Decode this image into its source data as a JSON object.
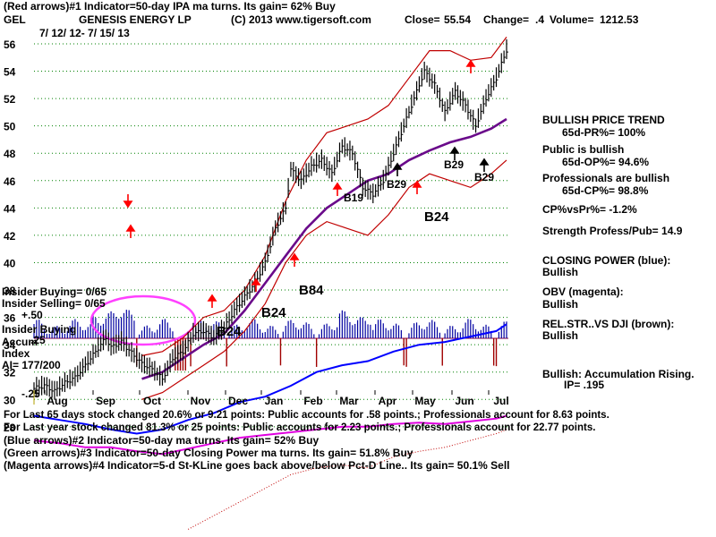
{
  "header": {
    "line1": "(Red arrows)#1 Indicator=50-day IPA ma turns. Its gain= 62% Buy",
    "ticker": "GEL",
    "company": "GENESIS ENERGY LP",
    "copyright": "(C) 2013 www.tigersoft.com",
    "close_label": "Close=",
    "close_value": "55.54",
    "change_label": "Change=",
    "change_value": ".4",
    "volume_label": "Volume=",
    "volume_value": "1212.53",
    "date_range": "7/ 12/ 12- 7/ 15/ 13"
  },
  "colors": {
    "price": "#000000",
    "grid": "#008000",
    "bands": "#c00000",
    "ma": "#6a0a8a",
    "closing_power": "#0000ff",
    "obv": "#e000e0",
    "accum": "#0000a0",
    "accum_neg": "#a00000",
    "arrow_red": "#ff0000",
    "ellipse": "#ff40ff"
  },
  "annotations": {
    "b19": "B19",
    "b29a": "B29",
    "b29b": "B29",
    "b29c": "B29",
    "b24a": "B24",
    "b24b": "B24",
    "b24c": "B24",
    "b84": "B84"
  },
  "insider": {
    "buying": "Insider Buying= 0/65",
    "selling": "Insider Selling= 0/65",
    "plus50": "+.50",
    "insider_buying_lbl": "Insider Buying",
    "accum": "Accum",
    "plus25": ".25",
    "index": "Index",
    "ai": "AI= 177/200",
    "minus25": "-.25"
  },
  "right_panel": {
    "trend_title": "BULLISH PRICE TREND",
    "pr": "65d-PR%= 100%",
    "public": "Public is bullish",
    "op": "65d-OP%= 94.6%",
    "pros": "Professionals are bullish",
    "cp": "65d-CP%= 98.8%",
    "cpvspr": "CP%vsPr%= -1.2%",
    "strength": "Strength Profess/Pub= 14.9",
    "closing_power": "CLOSING POWER (blue):",
    "cp_status": "Bullish",
    "obv": "OBV (magenta):",
    "obv_status": "Bullish",
    "relstr": "REL.STR..VS DJI (brown):",
    "relstr_status": "Bullish",
    "accum_rising": "Bullish: Accumulation Rising.",
    "ip": "IP= .195"
  },
  "footer": {
    "line1": "For Last 65 days stock changed 20.6% or 9.21 points: Public accounts for .58 points.; Professionals account for 8.63 points.",
    "line2": "For Last year stock changed 81.3% or 25 points: Public accounts for 2.23 points.; Professionals account for 22.77 points.",
    "line3": "(Blue arrows)#2 Indicator=50-day ma turns. Its gain= 52% Buy",
    "line4": "(Green arrows)#3 Indicator=50-day Closing Power ma turns. Its gain= 51.8% Buy",
    "line5": "(Magenta arrows)#4 Indicator=5-d St-KLine goes back above/below Pct-D Line.. Its gain= 50.1% Sell"
  },
  "chart_data": {
    "type": "line",
    "title": "GENESIS ENERGY LP (GEL) 7/12/12 - 7/15/13",
    "y_ticks": [
      56,
      54,
      52,
      50,
      48,
      46,
      44,
      42,
      40,
      38,
      36,
      34,
      32,
      30,
      28
    ],
    "ylim": [
      27,
      57
    ],
    "months": [
      "Aug",
      "Sep",
      "Oct",
      "Nov",
      "Dec",
      "Jan",
      "Feb",
      "Mar",
      "Apr",
      "May",
      "Jun",
      "Jul"
    ],
    "price_series": [
      [
        0,
        30.8
      ],
      [
        4,
        31.0
      ],
      [
        8,
        30.6
      ],
      [
        12,
        31.2
      ],
      [
        16,
        31.6
      ],
      [
        20,
        32.5
      ],
      [
        24,
        33.5
      ],
      [
        28,
        34.5
      ],
      [
        30,
        33.8
      ],
      [
        34,
        34.2
      ],
      [
        38,
        33.4
      ],
      [
        42,
        32.6
      ],
      [
        46,
        32.2
      ],
      [
        50,
        31.5
      ],
      [
        54,
        33.0
      ],
      [
        58,
        33.5
      ],
      [
        62,
        34.8
      ],
      [
        66,
        35.0
      ],
      [
        70,
        34.5
      ],
      [
        74,
        35.2
      ],
      [
        78,
        36.5
      ],
      [
        82,
        37.5
      ],
      [
        86,
        38.5
      ],
      [
        90,
        40.0
      ],
      [
        94,
        42.5
      ],
      [
        98,
        44.0
      ],
      [
        100,
        46.8
      ],
      [
        104,
        46.0
      ],
      [
        108,
        47.0
      ],
      [
        112,
        47.5
      ],
      [
        116,
        46.5
      ],
      [
        120,
        48.5
      ],
      [
        124,
        48.0
      ],
      [
        128,
        45.5
      ],
      [
        132,
        45.0
      ],
      [
        136,
        46.0
      ],
      [
        140,
        48.0
      ],
      [
        144,
        50.0
      ],
      [
        148,
        52.0
      ],
      [
        152,
        54.0
      ],
      [
        156,
        53.0
      ],
      [
        160,
        51.0
      ],
      [
        164,
        52.5
      ],
      [
        168,
        51.5
      ],
      [
        172,
        50.0
      ],
      [
        176,
        52.0
      ],
      [
        180,
        53.5
      ],
      [
        184,
        55.54
      ]
    ],
    "ma50": [
      [
        42,
        31.5
      ],
      [
        50,
        32.0
      ],
      [
        58,
        33.0
      ],
      [
        66,
        34.0
      ],
      [
        74,
        34.8
      ],
      [
        82,
        36.5
      ],
      [
        90,
        38.5
      ],
      [
        98,
        40.5
      ],
      [
        106,
        42.5
      ],
      [
        114,
        44.0
      ],
      [
        122,
        45.0
      ],
      [
        130,
        46.0
      ],
      [
        138,
        46.5
      ],
      [
        146,
        47.5
      ],
      [
        154,
        48.2
      ],
      [
        162,
        48.8
      ],
      [
        170,
        49.2
      ],
      [
        178,
        49.8
      ],
      [
        184,
        50.5
      ]
    ],
    "upper_band": [
      [
        42,
        33.2
      ],
      [
        50,
        33.5
      ],
      [
        58,
        34.5
      ],
      [
        66,
        36.0
      ],
      [
        74,
        36.5
      ],
      [
        82,
        38.0
      ],
      [
        90,
        40.5
      ],
      [
        98,
        44.5
      ],
      [
        106,
        47.5
      ],
      [
        114,
        49.5
      ],
      [
        122,
        50.0
      ],
      [
        130,
        50.5
      ],
      [
        138,
        51.5
      ],
      [
        146,
        53.5
      ],
      [
        154,
        55.5
      ],
      [
        162,
        55.5
      ],
      [
        170,
        54.8
      ],
      [
        178,
        55.0
      ],
      [
        184,
        56.5
      ]
    ],
    "lower_band": [
      [
        42,
        30.0
      ],
      [
        50,
        30.5
      ],
      [
        58,
        31.5
      ],
      [
        66,
        32.5
      ],
      [
        74,
        33.5
      ],
      [
        82,
        35.0
      ],
      [
        90,
        37.0
      ],
      [
        98,
        40.0
      ],
      [
        106,
        42.0
      ],
      [
        114,
        43.0
      ],
      [
        122,
        42.5
      ],
      [
        130,
        42.0
      ],
      [
        138,
        43.5
      ],
      [
        146,
        45.5
      ],
      [
        154,
        46.5
      ],
      [
        162,
        46.0
      ],
      [
        170,
        45.5
      ],
      [
        178,
        46.5
      ],
      [
        184,
        47.5
      ]
    ],
    "closing_power": [
      [
        0,
        28.8
      ],
      [
        10,
        28.5
      ],
      [
        20,
        28.2
      ],
      [
        30,
        27.8
      ],
      [
        40,
        27.5
      ],
      [
        50,
        27.8
      ],
      [
        60,
        28.5
      ],
      [
        70,
        29.0
      ],
      [
        80,
        29.8
      ],
      [
        90,
        30.2
      ],
      [
        100,
        31.0
      ],
      [
        110,
        32.0
      ],
      [
        120,
        32.5
      ],
      [
        130,
        32.8
      ],
      [
        140,
        33.5
      ],
      [
        150,
        34.0
      ],
      [
        160,
        34.2
      ],
      [
        170,
        34.6
      ],
      [
        180,
        35.0
      ],
      [
        184,
        35.5
      ]
    ],
    "obv": [
      [
        0,
        27.0
      ],
      [
        10,
        26.8
      ],
      [
        20,
        26.5
      ],
      [
        30,
        26.5
      ],
      [
        40,
        26.2
      ],
      [
        50,
        26.0
      ],
      [
        60,
        26.4
      ],
      [
        70,
        26.8
      ],
      [
        80,
        27.2
      ],
      [
        90,
        27.4
      ],
      [
        100,
        27.6
      ],
      [
        110,
        27.8
      ],
      [
        120,
        28.0
      ],
      [
        130,
        28.0
      ],
      [
        140,
        28.2
      ],
      [
        150,
        28.3
      ],
      [
        160,
        28.2
      ],
      [
        170,
        28.4
      ],
      [
        180,
        28.6
      ],
      [
        184,
        28.8
      ]
    ],
    "rel_str": [
      [
        60,
        20.5
      ],
      [
        70,
        21.5
      ],
      [
        80,
        22.5
      ],
      [
        90,
        23.5
      ],
      [
        100,
        24.5
      ],
      [
        110,
        25.0
      ],
      [
        120,
        25.2
      ],
      [
        130,
        25.0
      ],
      [
        140,
        25.8
      ],
      [
        150,
        26.2
      ],
      [
        160,
        26.5
      ],
      [
        170,
        27.0
      ],
      [
        180,
        27.5
      ],
      [
        184,
        27.8
      ]
    ]
  }
}
